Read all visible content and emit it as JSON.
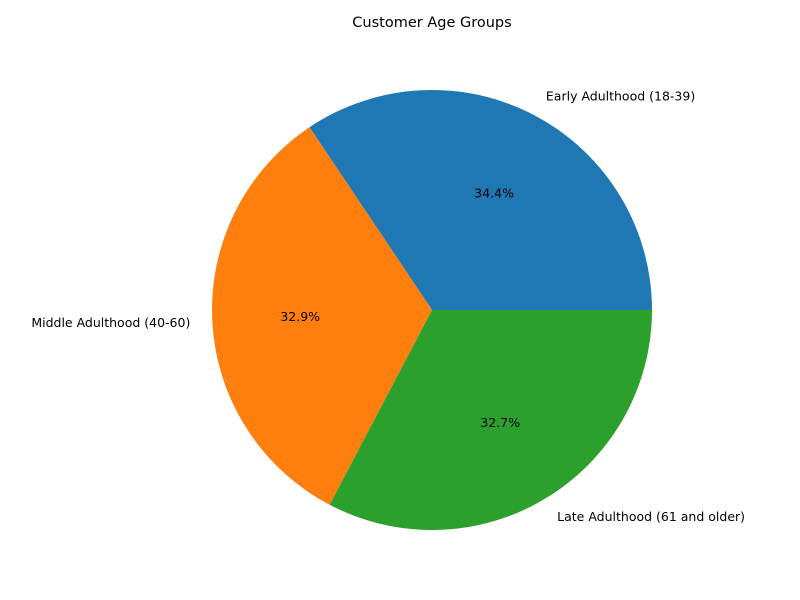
{
  "chart_data": {
    "type": "pie",
    "title": "Customer Age Groups",
    "start_angle_deg": 0,
    "direction": "counterclockwise",
    "slices": [
      {
        "label": "Early Adulthood (18-39)",
        "value": 34.4,
        "pct_label": "34.4%",
        "color": "#1f77b4"
      },
      {
        "label": "Middle Adulthood (40-60)",
        "value": 32.9,
        "pct_label": "32.9%",
        "color": "#ff7f0e"
      },
      {
        "label": "Late Adulthood (61 and older)",
        "value": 32.7,
        "pct_label": "32.7%",
        "color": "#2ca02c"
      }
    ]
  }
}
